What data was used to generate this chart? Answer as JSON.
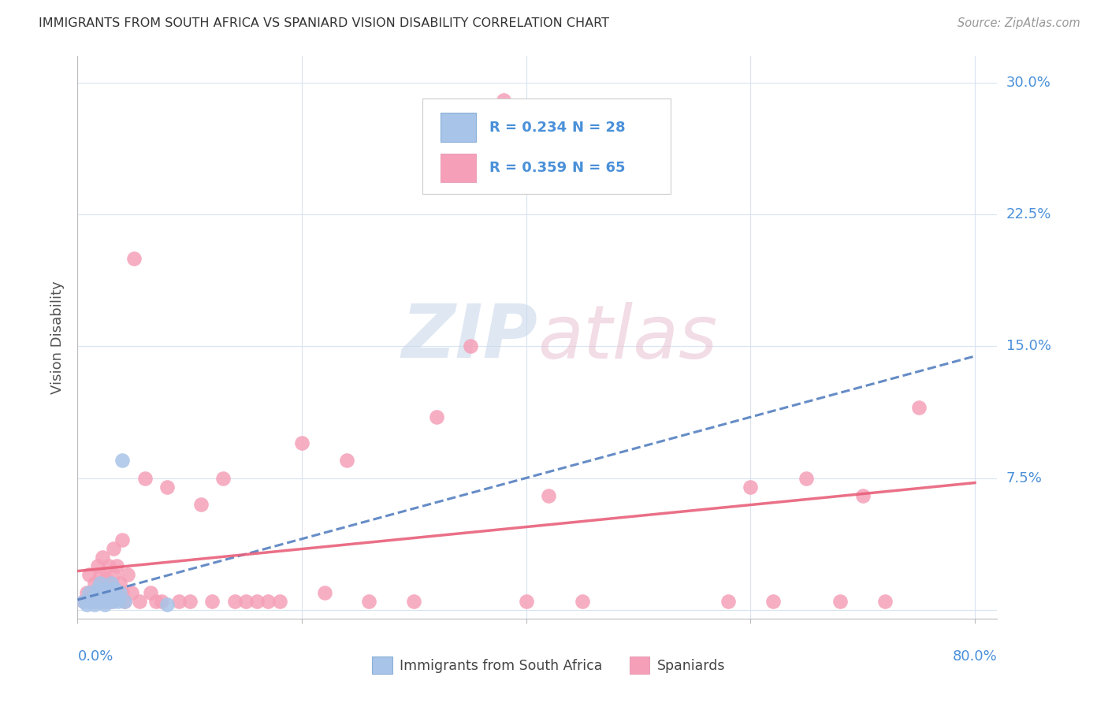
{
  "title": "IMMIGRANTS FROM SOUTH AFRICA VS SPANIARD VISION DISABILITY CORRELATION CHART",
  "source": "Source: ZipAtlas.com",
  "ylabel": "Vision Disability",
  "blue_color": "#a8c4e8",
  "pink_color": "#f5a0b8",
  "blue_line_color": "#5580c0",
  "pink_line_color": "#e8607a",
  "watermark_zip": "ZIP",
  "watermark_atlas": "atlas",
  "legend_r1": "R = 0.234",
  "legend_n1": "N = 28",
  "legend_r2": "R = 0.359",
  "legend_n2": "N = 65",
  "legend_text_color": "#4a90d9",
  "ytick_color": "#4a90d9",
  "xlabel_color": "#4a90d9",
  "title_color": "#333333",
  "source_color": "#999999",
  "xlim": [
    0.0,
    0.82
  ],
  "ylim": [
    -0.005,
    0.315
  ],
  "blue_scatter_x": [
    0.005,
    0.008,
    0.01,
    0.012,
    0.015,
    0.015,
    0.018,
    0.018,
    0.02,
    0.02,
    0.022,
    0.022,
    0.024,
    0.024,
    0.025,
    0.026,
    0.028,
    0.028,
    0.03,
    0.03,
    0.032,
    0.033,
    0.035,
    0.036,
    0.038,
    0.04,
    0.042,
    0.08
  ],
  "blue_scatter_y": [
    0.005,
    0.003,
    0.01,
    0.005,
    0.008,
    0.003,
    0.012,
    0.005,
    0.015,
    0.007,
    0.01,
    0.005,
    0.008,
    0.003,
    0.012,
    0.006,
    0.01,
    0.005,
    0.008,
    0.015,
    0.005,
    0.012,
    0.008,
    0.005,
    0.01,
    0.085,
    0.005,
    0.003
  ],
  "pink_scatter_x": [
    0.005,
    0.008,
    0.01,
    0.01,
    0.012,
    0.015,
    0.015,
    0.018,
    0.018,
    0.02,
    0.02,
    0.022,
    0.022,
    0.025,
    0.025,
    0.028,
    0.028,
    0.03,
    0.03,
    0.032,
    0.032,
    0.035,
    0.035,
    0.038,
    0.04,
    0.04,
    0.042,
    0.045,
    0.048,
    0.05,
    0.055,
    0.06,
    0.065,
    0.07,
    0.075,
    0.08,
    0.09,
    0.1,
    0.11,
    0.12,
    0.13,
    0.14,
    0.15,
    0.16,
    0.17,
    0.18,
    0.2,
    0.22,
    0.24,
    0.26,
    0.3,
    0.32,
    0.35,
    0.38,
    0.4,
    0.42,
    0.45,
    0.58,
    0.6,
    0.62,
    0.65,
    0.68,
    0.7,
    0.72,
    0.75
  ],
  "pink_scatter_y": [
    0.005,
    0.01,
    0.005,
    0.02,
    0.008,
    0.005,
    0.015,
    0.01,
    0.025,
    0.005,
    0.02,
    0.012,
    0.03,
    0.005,
    0.018,
    0.01,
    0.025,
    0.005,
    0.015,
    0.02,
    0.035,
    0.008,
    0.025,
    0.015,
    0.01,
    0.04,
    0.005,
    0.02,
    0.01,
    0.2,
    0.005,
    0.075,
    0.01,
    0.005,
    0.005,
    0.07,
    0.005,
    0.005,
    0.06,
    0.005,
    0.075,
    0.005,
    0.005,
    0.005,
    0.005,
    0.005,
    0.095,
    0.01,
    0.085,
    0.005,
    0.005,
    0.11,
    0.15,
    0.29,
    0.005,
    0.065,
    0.005,
    0.005,
    0.07,
    0.005,
    0.075,
    0.005,
    0.065,
    0.005,
    0.115
  ]
}
